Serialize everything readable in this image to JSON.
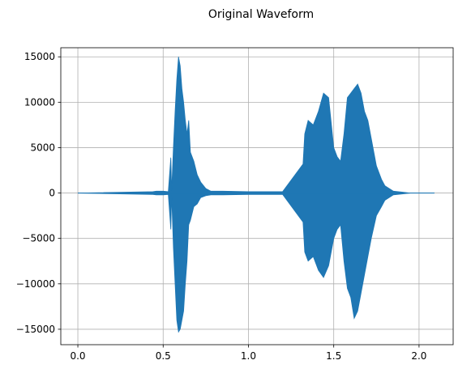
{
  "chart_data": {
    "type": "line",
    "title": "Original Waveform",
    "xlabel": "",
    "ylabel": "",
    "xlim": [
      -0.1,
      2.2
    ],
    "ylim": [
      -16700,
      16000
    ],
    "x_ticks": [
      {
        "value": 0.0,
        "label": "0.0"
      },
      {
        "value": 0.5,
        "label": "0.5"
      },
      {
        "value": 1.0,
        "label": "1.0"
      },
      {
        "value": 1.5,
        "label": "1.5"
      },
      {
        "value": 2.0,
        "label": "2.0"
      }
    ],
    "y_ticks": [
      {
        "value": 15000,
        "label": "15000"
      },
      {
        "value": 10000,
        "label": "10000"
      },
      {
        "value": 5000,
        "label": "5000"
      },
      {
        "value": 0,
        "label": "0"
      },
      {
        "value": -5000,
        "label": "−5000"
      },
      {
        "value": -10000,
        "label": "−10000"
      },
      {
        "value": -15000,
        "label": "−15000"
      }
    ],
    "grid": true,
    "color": "#1f77b4",
    "series": [
      {
        "x": [
          0.0,
          0.44,
          0.46,
          0.5,
          0.53,
          0.545,
          0.55,
          0.56,
          0.57,
          0.58,
          0.59,
          0.6,
          0.61,
          0.62,
          0.63,
          0.64,
          0.65,
          0.66,
          0.68,
          0.7,
          0.72,
          0.75,
          0.78,
          0.85,
          1.0,
          1.2,
          1.32,
          1.33,
          1.35,
          1.38,
          1.41,
          1.44,
          1.47,
          1.5,
          1.52,
          1.54,
          1.56,
          1.58,
          1.6,
          1.62,
          1.64,
          1.66,
          1.68,
          1.7,
          1.72,
          1.75,
          1.78,
          1.8,
          1.85,
          1.9,
          1.95,
          2.0,
          2.09
        ],
        "upper": [
          0,
          150,
          200,
          200,
          150,
          3900,
          300,
          5000,
          9000,
          12500,
          15000,
          14000,
          11500,
          10000,
          8000,
          6500,
          8000,
          4500,
          3500,
          2000,
          1200,
          500,
          200,
          200,
          150,
          150,
          3200,
          6500,
          8000,
          7500,
          9000,
          11000,
          10500,
          5000,
          4000,
          3500,
          6500,
          10500,
          11000,
          11500,
          12000,
          11000,
          9000,
          8000,
          6000,
          3000,
          1500,
          800,
          200,
          100,
          0,
          0,
          0
        ],
        "lower": [
          0,
          -150,
          -200,
          -200,
          -150,
          -4000,
          -300,
          -6000,
          -10000,
          -14000,
          -15300,
          -15000,
          -14000,
          -13000,
          -10000,
          -7500,
          -3500,
          -3000,
          -1500,
          -1200,
          -500,
          -300,
          -200,
          -200,
          -150,
          -150,
          -3200,
          -6500,
          -7500,
          -7000,
          -8500,
          -9300,
          -8000,
          -5000,
          -4000,
          -3500,
          -7500,
          -10500,
          -11500,
          -13800,
          -13000,
          -11000,
          -9000,
          -7000,
          -5000,
          -2500,
          -1500,
          -800,
          -200,
          -100,
          0,
          0,
          0
        ]
      }
    ]
  }
}
